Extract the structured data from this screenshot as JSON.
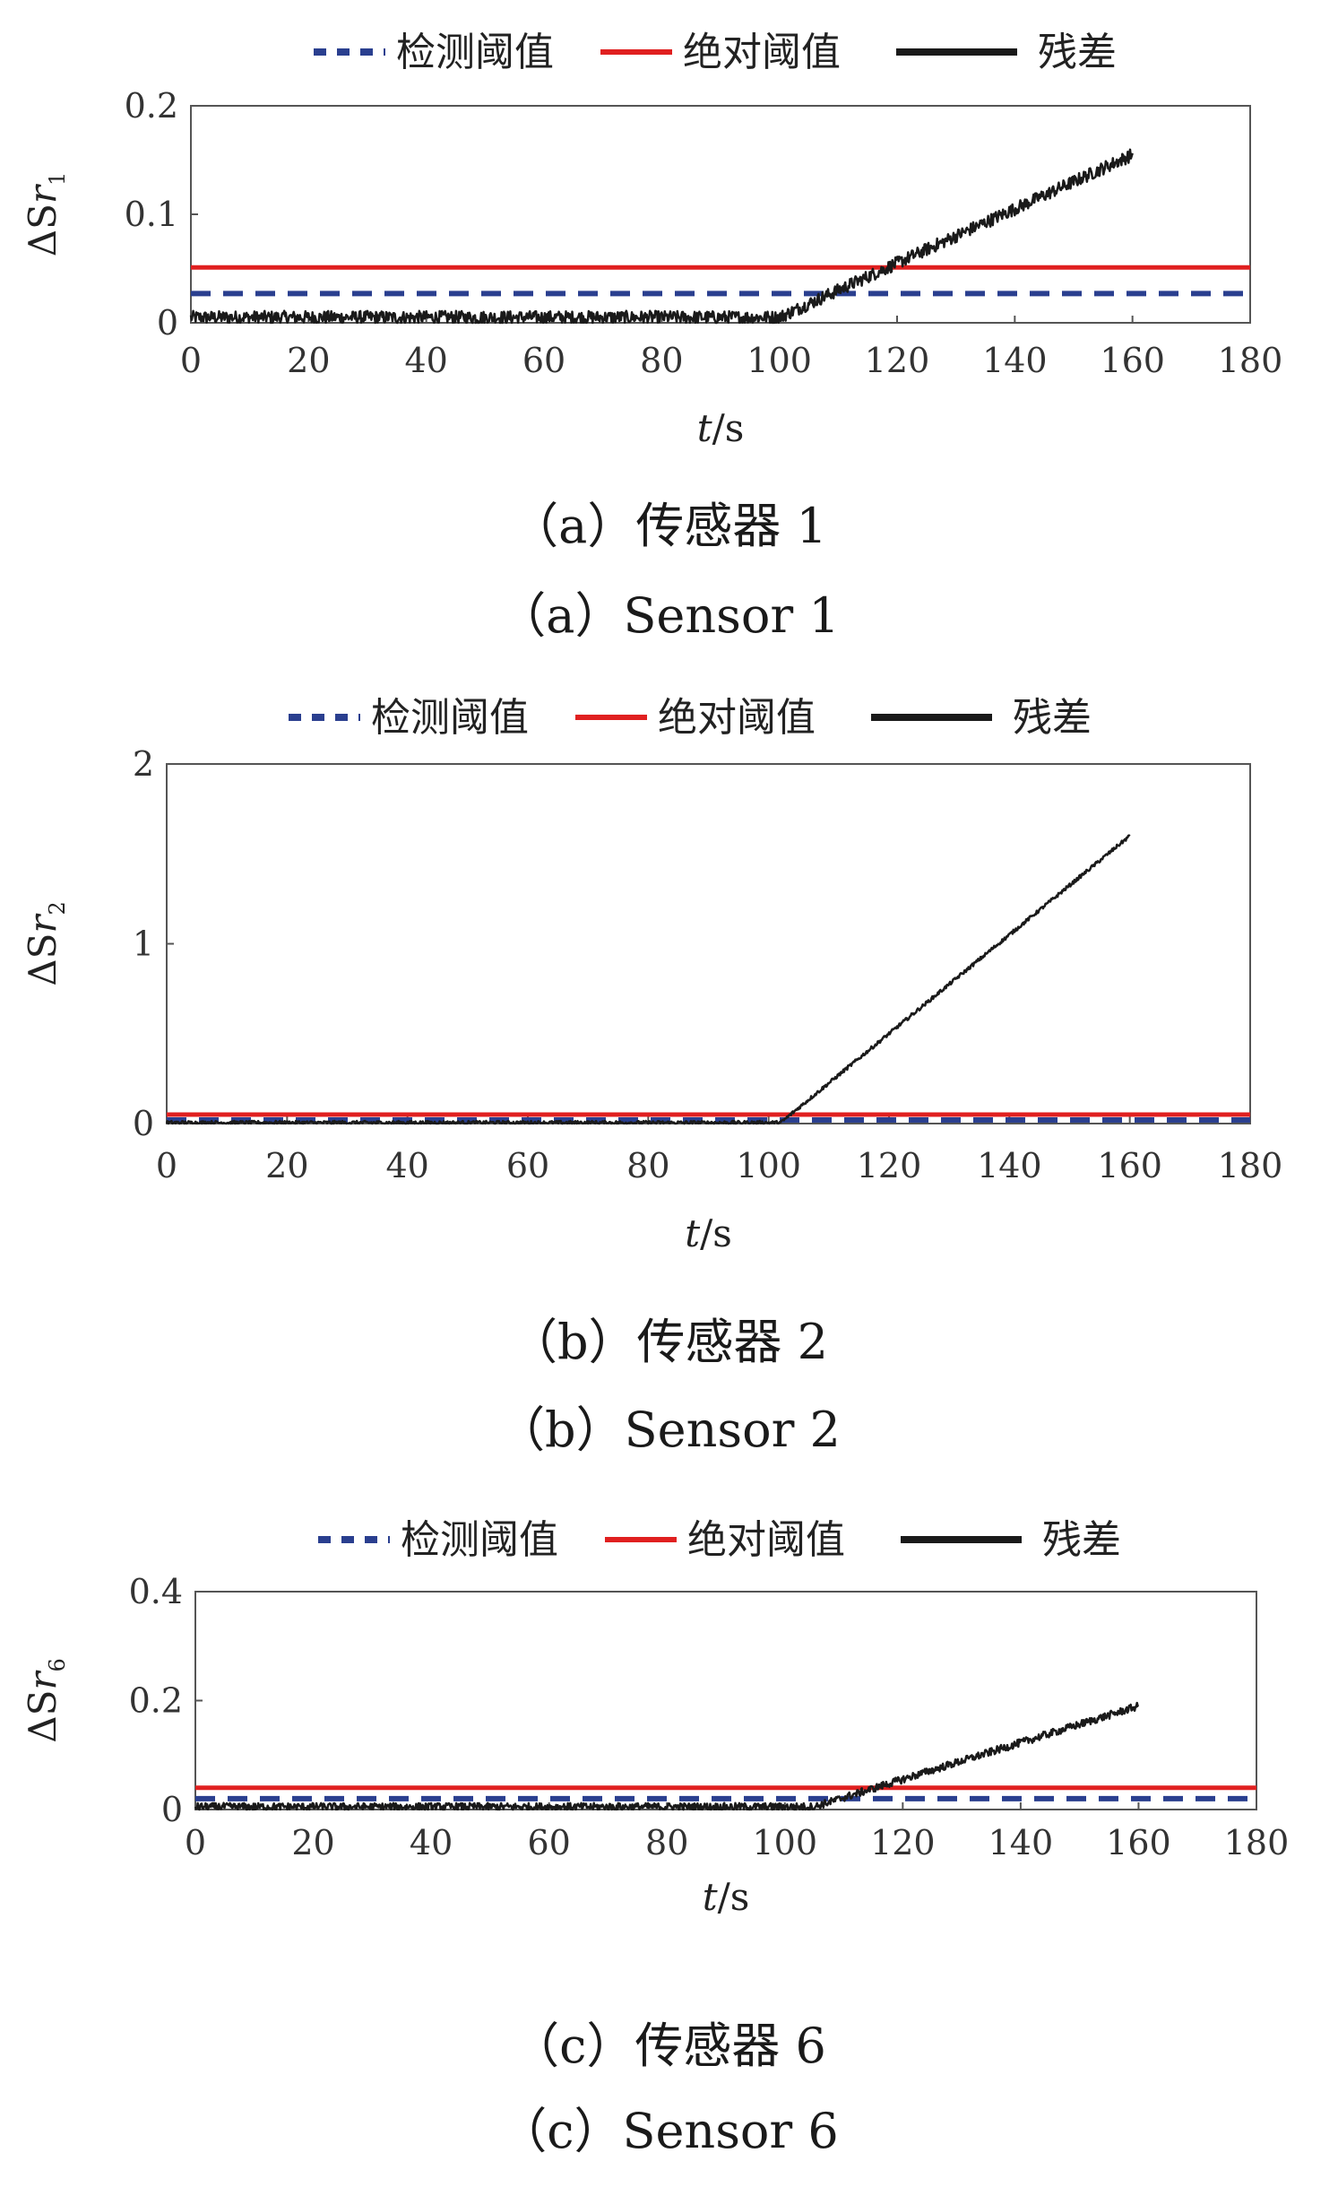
{
  "legend": {
    "detect_label": "检测阈值",
    "absolute_label": "绝对阈值",
    "residual_label": "残差"
  },
  "colors": {
    "detect": "#2a3f8f",
    "absolute": "#e02020",
    "residual": "#1a1a1a"
  },
  "chart_data": [
    {
      "type": "line",
      "xlabel": "t/s",
      "ylabel": "ΔSr1",
      "ylabel_sub": "1",
      "caption_cn": "（a）传感器 1",
      "caption_en": "（a）Sensor 1",
      "xlim": [
        0,
        180
      ],
      "ylim": [
        0,
        0.2
      ],
      "xticks": [
        "0",
        "20",
        "40",
        "60",
        "80",
        "100",
        "120",
        "140",
        "160",
        "180"
      ],
      "yticks": [
        "0",
        "0.1",
        "0.2"
      ],
      "detect_threshold": 0.027,
      "absolute_threshold": 0.051,
      "residual": {
        "x": [
          0,
          100,
          160
        ],
        "y": [
          0.005,
          0.005,
          0.155
        ],
        "noise": 0.006
      }
    },
    {
      "type": "line",
      "xlabel": "t/s",
      "ylabel": "ΔSr2",
      "ylabel_sub": "2",
      "caption_cn": "（b）传感器 2",
      "caption_en": "（b）Sensor 2",
      "xlim": [
        0,
        180
      ],
      "ylim": [
        0,
        2
      ],
      "xticks": [
        "0",
        "20",
        "40",
        "60",
        "80",
        "100",
        "120",
        "140",
        "160",
        "180"
      ],
      "yticks": [
        "0",
        "1",
        "2"
      ],
      "detect_threshold": 0.02,
      "absolute_threshold": 0.05,
      "residual": {
        "x": [
          0,
          102,
          160
        ],
        "y": [
          0.005,
          0.005,
          1.6
        ],
        "noise": 0.01
      }
    },
    {
      "type": "line",
      "xlabel": "t/s",
      "ylabel": "ΔSr6",
      "ylabel_sub": "6",
      "caption_cn": "（c）传感器 6",
      "caption_en": "（c）Sensor 6",
      "xlim": [
        0,
        180
      ],
      "ylim": [
        0,
        0.4
      ],
      "xticks": [
        "0",
        "20",
        "40",
        "60",
        "80",
        "100",
        "120",
        "140",
        "160",
        "180"
      ],
      "yticks": [
        "0",
        "0.2",
        "0.4"
      ],
      "detect_threshold": 0.02,
      "absolute_threshold": 0.04,
      "residual": {
        "x": [
          0,
          105,
          160
        ],
        "y": [
          0.005,
          0.005,
          0.19
        ],
        "noise": 0.007
      }
    }
  ]
}
